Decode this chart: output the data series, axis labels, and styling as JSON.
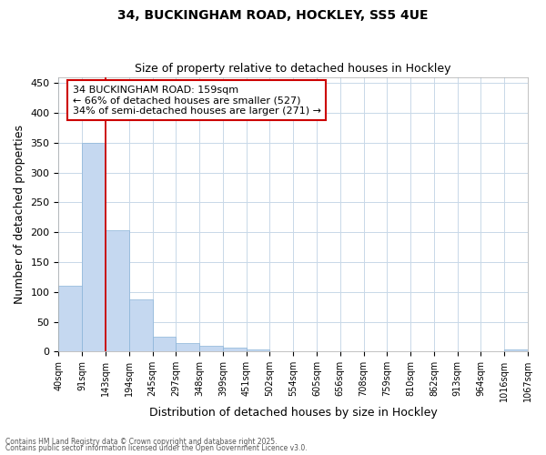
{
  "title_line1": "34, BUCKINGHAM ROAD, HOCKLEY, SS5 4UE",
  "title_line2": "Size of property relative to detached houses in Hockley",
  "xlabel": "Distribution of detached houses by size in Hockley",
  "ylabel": "Number of detached properties",
  "bin_labels": [
    "40sqm",
    "91sqm",
    "143sqm",
    "194sqm",
    "245sqm",
    "297sqm",
    "348sqm",
    "399sqm",
    "451sqm",
    "502sqm",
    "554sqm",
    "605sqm",
    "656sqm",
    "708sqm",
    "759sqm",
    "810sqm",
    "862sqm",
    "913sqm",
    "964sqm",
    "1016sqm",
    "1067sqm"
  ],
  "bar_heights": [
    110,
    350,
    203,
    88,
    25,
    15,
    9,
    6,
    4,
    0,
    0,
    0,
    0,
    0,
    0,
    0,
    0,
    0,
    0,
    3,
    0
  ],
  "bar_color": "#c5d8f0",
  "bar_edge_color": "#8ab4d8",
  "grid_color": "#c8d8e8",
  "background_color": "#ffffff",
  "plot_bg_color": "#ffffff",
  "red_line_x": 2,
  "annotation_text": "34 BUCKINGHAM ROAD: 159sqm\n← 66% of detached houses are smaller (527)\n34% of semi-detached houses are larger (271) →",
  "annotation_box_color": "#ffffff",
  "annotation_border_color": "#cc0000",
  "ylim": [
    0,
    460
  ],
  "yticks": [
    0,
    50,
    100,
    150,
    200,
    250,
    300,
    350,
    400,
    450
  ],
  "footer_line1": "Contains HM Land Registry data © Crown copyright and database right 2025.",
  "footer_line2": "Contains public sector information licensed under the Open Government Licence v3.0."
}
